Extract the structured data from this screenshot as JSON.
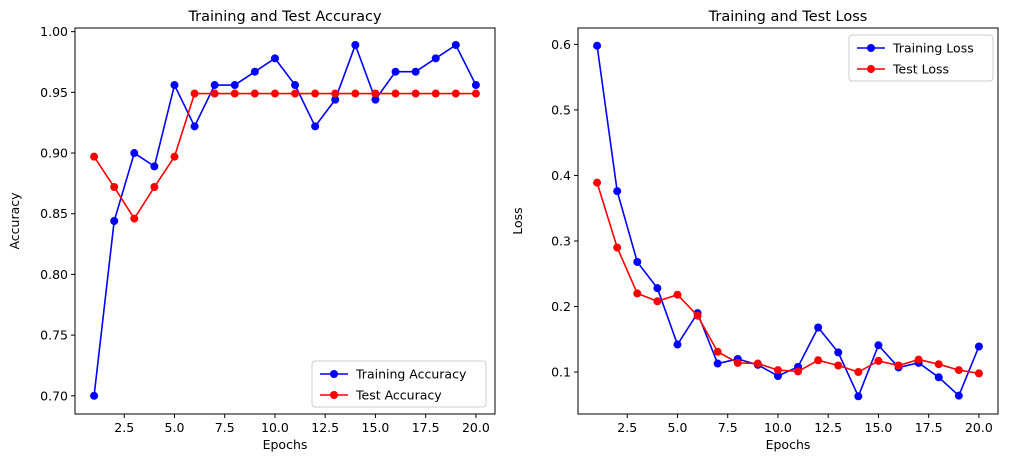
{
  "chart_data": [
    {
      "type": "line",
      "title": "Training and Test Accuracy",
      "xlabel": "Epochs",
      "ylabel": "Accuracy",
      "x": [
        1,
        2,
        3,
        4,
        5,
        6,
        7,
        8,
        9,
        10,
        11,
        12,
        13,
        14,
        15,
        16,
        17,
        18,
        19,
        20
      ],
      "xlim": [
        0.05,
        20.95
      ],
      "ylim": [
        0.685,
        1.003
      ],
      "xticks": [
        2.5,
        5.0,
        7.5,
        10.0,
        12.5,
        15.0,
        17.5,
        20.0
      ],
      "xtick_labels": [
        "2.5",
        "5.0",
        "7.5",
        "10.0",
        "12.5",
        "15.0",
        "17.5",
        "20.0"
      ],
      "yticks": [
        0.7,
        0.75,
        0.8,
        0.85,
        0.9,
        0.95,
        1.0
      ],
      "ytick_labels": [
        "0.70",
        "0.75",
        "0.80",
        "0.85",
        "0.90",
        "0.95",
        "1.00"
      ],
      "grid": false,
      "legend_position": "lower-right",
      "series": [
        {
          "name": "Training Accuracy",
          "color": "#0000ff",
          "marker": "circle",
          "values": [
            0.7,
            0.844,
            0.9,
            0.889,
            0.956,
            0.922,
            0.956,
            0.956,
            0.967,
            0.978,
            0.956,
            0.922,
            0.944,
            0.989,
            0.944,
            0.967,
            0.967,
            0.978,
            0.989,
            0.956
          ]
        },
        {
          "name": "Test Accuracy",
          "color": "#ff0000",
          "marker": "circle",
          "values": [
            0.897,
            0.872,
            0.846,
            0.872,
            0.897,
            0.949,
            0.949,
            0.949,
            0.949,
            0.949,
            0.949,
            0.949,
            0.949,
            0.949,
            0.949,
            0.949,
            0.949,
            0.949,
            0.949,
            0.949
          ]
        }
      ]
    },
    {
      "type": "line",
      "title": "Training and Test Loss",
      "xlabel": "Epochs",
      "ylabel": "Loss",
      "x": [
        1,
        2,
        3,
        4,
        5,
        6,
        7,
        8,
        9,
        10,
        11,
        12,
        13,
        14,
        15,
        16,
        17,
        18,
        19,
        20
      ],
      "xlim": [
        0.05,
        20.95
      ],
      "ylim": [
        0.036,
        0.625
      ],
      "xticks": [
        2.5,
        5.0,
        7.5,
        10.0,
        12.5,
        15.0,
        17.5,
        20.0
      ],
      "xtick_labels": [
        "2.5",
        "5.0",
        "7.5",
        "10.0",
        "12.5",
        "15.0",
        "17.5",
        "20.0"
      ],
      "yticks": [
        0.1,
        0.2,
        0.3,
        0.4,
        0.5,
        0.6
      ],
      "ytick_labels": [
        "0.1",
        "0.2",
        "0.3",
        "0.4",
        "0.5",
        "0.6"
      ],
      "grid": false,
      "legend_position": "upper-right",
      "series": [
        {
          "name": "Training Loss",
          "color": "#0000ff",
          "marker": "circle",
          "values": [
            0.598,
            0.376,
            0.268,
            0.228,
            0.142,
            0.19,
            0.113,
            0.12,
            0.111,
            0.094,
            0.108,
            0.168,
            0.13,
            0.063,
            0.141,
            0.107,
            0.114,
            0.092,
            0.064,
            0.139
          ]
        },
        {
          "name": "Test Loss",
          "color": "#ff0000",
          "marker": "circle",
          "values": [
            0.389,
            0.29,
            0.22,
            0.208,
            0.218,
            0.186,
            0.131,
            0.114,
            0.113,
            0.103,
            0.101,
            0.118,
            0.11,
            0.1,
            0.117,
            0.11,
            0.119,
            0.112,
            0.103,
            0.098
          ]
        }
      ]
    }
  ]
}
